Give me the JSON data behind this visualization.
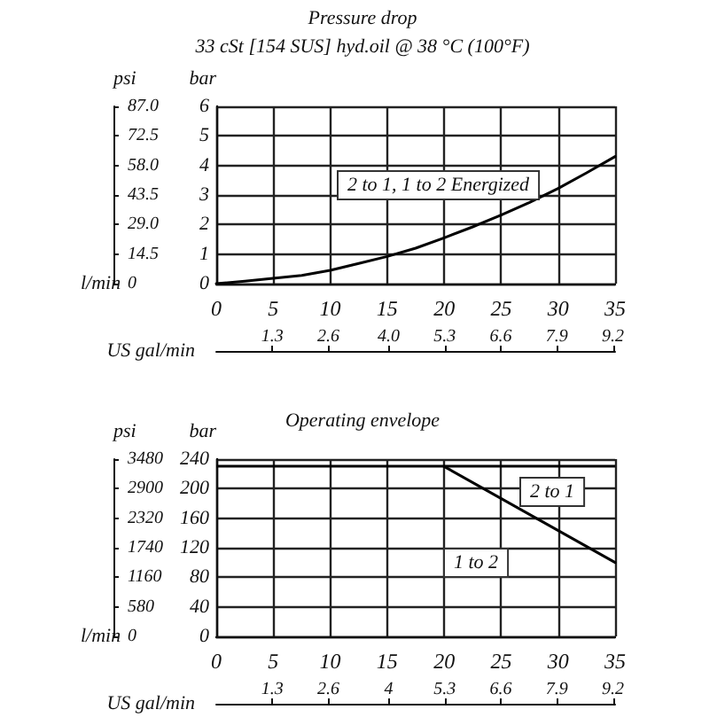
{
  "chart_data": [
    {
      "type": "line",
      "title": "Pressure drop",
      "subtitle": "33 cSt [154 SUS] hyd.oil @ 38 °C (100°F)",
      "xlabel": "l/min",
      "x2label": "US gal/min",
      "ylabel": "bar",
      "y2label": "psi",
      "x": [
        0,
        2.5,
        5,
        7.5,
        10,
        12.5,
        15,
        17.5,
        20,
        22.5,
        25,
        27.5,
        30,
        32.5,
        35
      ],
      "series": [
        {
          "color": "#000000",
          "values": [
            0,
            0.08,
            0.18,
            0.28,
            0.45,
            0.68,
            0.92,
            1.2,
            1.55,
            1.92,
            2.32,
            2.75,
            3.22,
            3.75,
            4.3
          ]
        }
      ],
      "xlim": [
        0,
        35
      ],
      "xticks": [
        0,
        5,
        10,
        15,
        20,
        25,
        30,
        35
      ],
      "x2lim": [
        0,
        9.25
      ],
      "x2ticks": [
        1.3,
        2.6,
        {
          "value": 4,
          "label": "4.0"
        },
        5.3,
        6.6,
        7.9,
        9.2
      ],
      "ylim": [
        0,
        6
      ],
      "yticks": [
        0,
        1,
        2,
        3,
        4,
        5,
        6
      ],
      "y2lim": [
        0,
        87
      ],
      "y2ticks": [
        0,
        14.5,
        {
          "value": 29,
          "label": "29.0"
        },
        43.5,
        {
          "value": 58,
          "label": "58.0"
        },
        72.5,
        {
          "value": 87,
          "label": "87.0"
        }
      ],
      "annotations": [
        "2 to 1, 1 to 2 Energized"
      ],
      "grid": true,
      "marker": "none"
    },
    {
      "type": "line",
      "title": "Operating envelope",
      "xlabel": "l/min",
      "x2label": "US gal/min",
      "ylabel": "bar",
      "y2label": "psi",
      "x": [
        20,
        35
      ],
      "series": [
        {
          "color": "#000000",
          "values": [
            230,
            100
          ]
        }
      ],
      "xlim": [
        0,
        35
      ],
      "xticks": [
        0,
        5,
        10,
        15,
        20,
        25,
        30,
        35
      ],
      "x2lim": [
        0,
        9.25
      ],
      "x2ticks": [
        1.3,
        2.6,
        4,
        5.3,
        6.6,
        7.9,
        9.2
      ],
      "ylim": [
        0,
        240
      ],
      "yticks": [
        0,
        40,
        80,
        120,
        160,
        200,
        240
      ],
      "y2lim": [
        0,
        3480
      ],
      "y2ticks": [
        0,
        580,
        1160,
        1740,
        2320,
        2900,
        3480
      ],
      "ref_lines": [
        {
          "axis": "y",
          "value": 230,
          "color": "#000000"
        }
      ],
      "annotations": [
        "2 to 1",
        "1 to 2"
      ],
      "grid": true,
      "marker": "none"
    }
  ]
}
